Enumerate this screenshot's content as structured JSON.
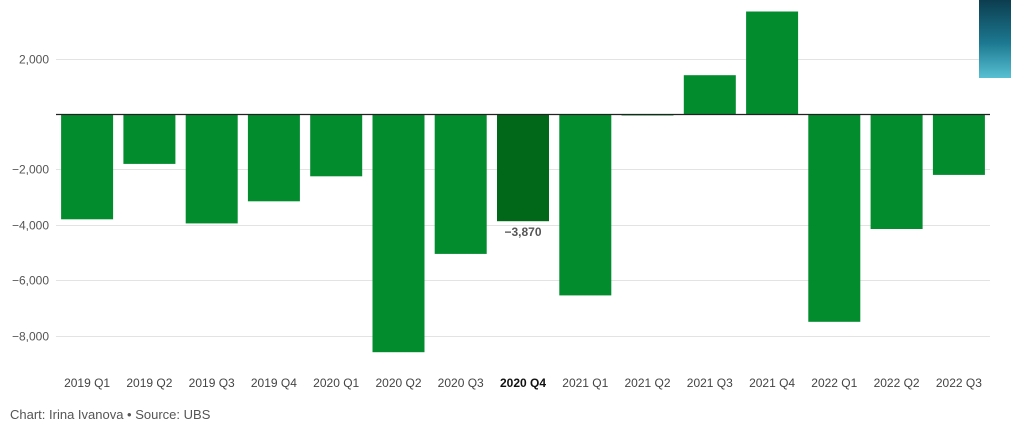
{
  "chart_data": {
    "type": "bar",
    "title": "",
    "xlabel": "",
    "ylabel": "",
    "categories": [
      "2019 Q1",
      "2019 Q2",
      "2019 Q3",
      "2019 Q4",
      "2020 Q1",
      "2020 Q2",
      "2020 Q3",
      "2020 Q4",
      "2021 Q1",
      "2021 Q2",
      "2021 Q3",
      "2021 Q4",
      "2022 Q1",
      "2022 Q2",
      "2022 Q3"
    ],
    "values": [
      -3800,
      -1800,
      -3950,
      -3150,
      -2250,
      -8600,
      -5050,
      -3870,
      -6550,
      -50,
      1400,
      3700,
      -7500,
      -4150,
      -2200
    ],
    "highlight_index": 7,
    "highlight_label": "−3,870",
    "ylim": [
      -9000,
      4000
    ],
    "yticks": [
      2000,
      -2000,
      -4000,
      -6000,
      -8000
    ],
    "ytick_labels": [
      "2,000",
      "−2,000",
      "−4,000",
      "−6,000",
      "−8,000"
    ],
    "grid": true,
    "colors": {
      "bar": "#028c2d",
      "highlight": "#006818",
      "grid": "#e3e3e3",
      "zero_line": "#222222"
    }
  },
  "footer": {
    "credit": "Chart: Irina Ivanova • Source: UBS"
  }
}
